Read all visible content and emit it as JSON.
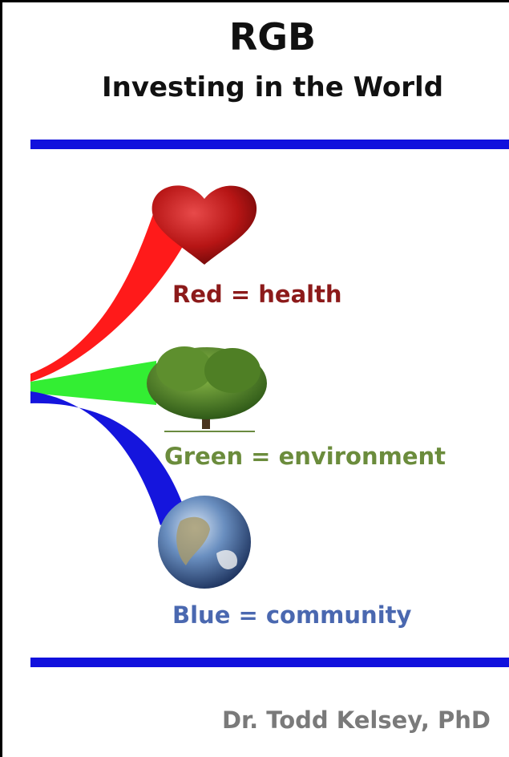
{
  "cover": {
    "title": "RGB",
    "subtitle": "Investing in the World",
    "items": [
      {
        "label": "Red = health"
      },
      {
        "label": "Green = environment"
      },
      {
        "label": "Blue = community"
      }
    ],
    "author": "Dr. Todd Kelsey, PhD"
  }
}
